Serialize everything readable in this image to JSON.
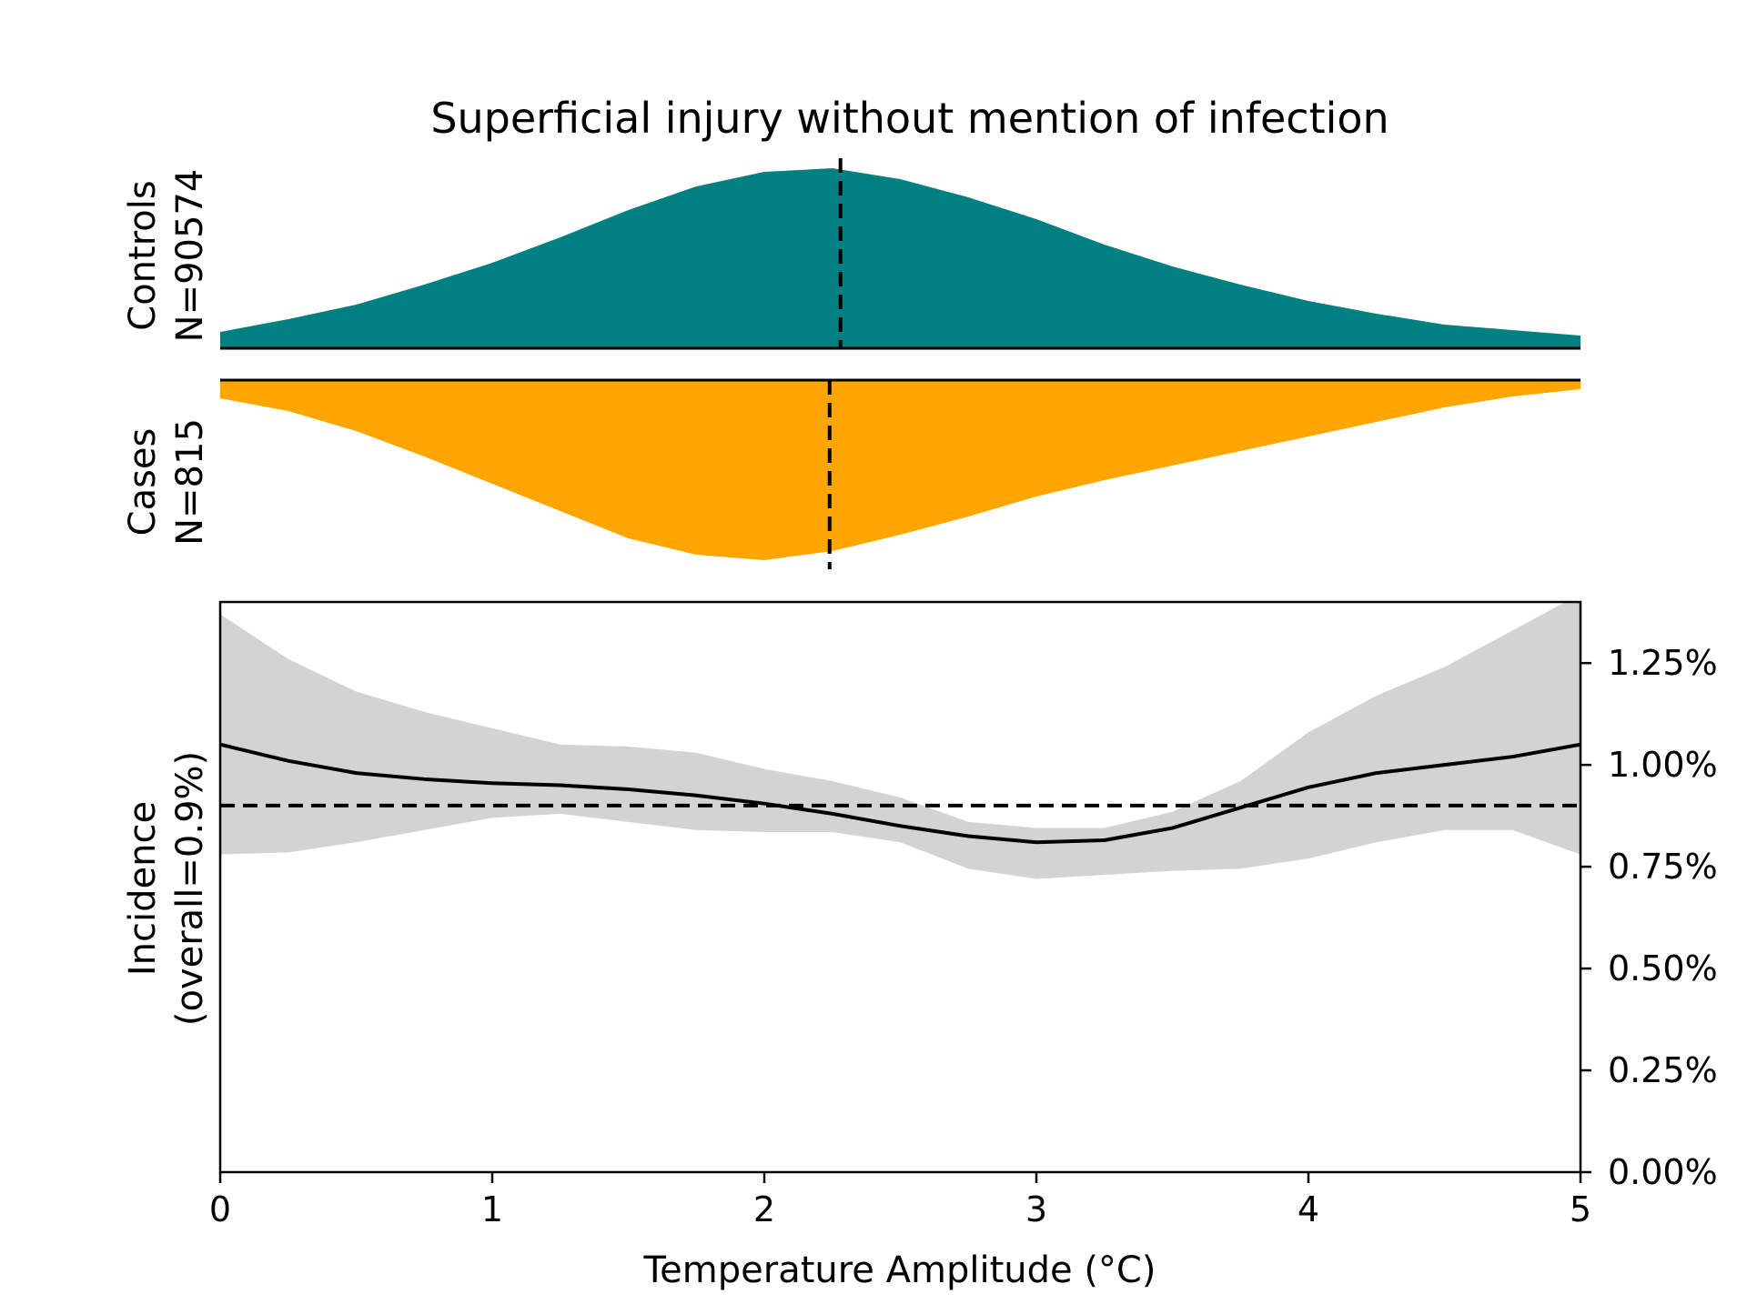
{
  "chart_data": [
    {
      "type": "area",
      "title": "Superficial injury without mention of infection",
      "panel_label_lines": [
        "Controls",
        "N=90574"
      ],
      "color": "#008080",
      "median_marker": 2.28,
      "x": [
        0,
        0.25,
        0.5,
        0.75,
        1.0,
        1.25,
        1.5,
        1.75,
        2.0,
        2.25,
        2.5,
        2.75,
        3.0,
        3.25,
        3.5,
        3.75,
        4.0,
        4.25,
        4.5,
        4.75,
        5.0
      ],
      "density": [
        0.09,
        0.16,
        0.24,
        0.35,
        0.47,
        0.61,
        0.76,
        0.89,
        0.97,
        0.99,
        0.93,
        0.83,
        0.71,
        0.57,
        0.45,
        0.35,
        0.26,
        0.19,
        0.13,
        0.1,
        0.07
      ]
    },
    {
      "type": "area",
      "panel_label_lines": [
        "Cases",
        "N=815"
      ],
      "color": "#FFA500",
      "median_marker": 2.24,
      "x": [
        0,
        0.25,
        0.5,
        0.75,
        1.0,
        1.25,
        1.5,
        1.75,
        2.0,
        2.25,
        2.5,
        2.75,
        3.0,
        3.25,
        3.5,
        3.75,
        4.0,
        4.25,
        4.5,
        4.75,
        5.0
      ],
      "density": [
        0.1,
        0.17,
        0.28,
        0.42,
        0.57,
        0.72,
        0.87,
        0.96,
        0.99,
        0.94,
        0.85,
        0.75,
        0.64,
        0.55,
        0.47,
        0.39,
        0.31,
        0.23,
        0.15,
        0.09,
        0.05
      ]
    },
    {
      "type": "line",
      "ylabel_lines": [
        "Incidence",
        "(overall=0.9%)"
      ],
      "xlabel": "Temperature Amplitude (°C)",
      "xlim": [
        0,
        5
      ],
      "ylim": [
        0,
        1.4
      ],
      "x_ticks": [
        0,
        1,
        2,
        3,
        4,
        5
      ],
      "x_tick_labels": [
        "0",
        "1",
        "2",
        "3",
        "4",
        "5"
      ],
      "y_ticks": [
        0,
        0.25,
        0.5,
        0.75,
        1.0,
        1.25
      ],
      "y_tick_labels": [
        "0.00%",
        "0.25%",
        "0.50%",
        "0.75%",
        "1.00%",
        "1.25%"
      ],
      "y_axis_side": "right",
      "overall_rate": 0.9,
      "band_color": "#d3d3d3",
      "x": [
        0,
        0.25,
        0.5,
        0.75,
        1.0,
        1.25,
        1.5,
        1.75,
        2.0,
        2.25,
        2.5,
        2.75,
        3.0,
        3.25,
        3.5,
        3.75,
        4.0,
        4.25,
        4.5,
        4.75,
        5.0
      ],
      "series": [
        {
          "name": "incidence",
          "values": [
            1.05,
            1.01,
            0.98,
            0.965,
            0.955,
            0.95,
            0.94,
            0.925,
            0.905,
            0.88,
            0.85,
            0.825,
            0.81,
            0.815,
            0.845,
            0.895,
            0.945,
            0.98,
            1.0,
            1.02,
            1.05
          ],
          "lower": [
            0.78,
            0.785,
            0.81,
            0.84,
            0.87,
            0.88,
            0.86,
            0.84,
            0.835,
            0.835,
            0.81,
            0.745,
            0.72,
            0.73,
            0.74,
            0.745,
            0.77,
            0.81,
            0.84,
            0.84,
            0.78
          ],
          "upper": [
            1.37,
            1.26,
            1.18,
            1.13,
            1.09,
            1.05,
            1.045,
            1.03,
            0.99,
            0.96,
            0.92,
            0.86,
            0.845,
            0.845,
            0.885,
            0.96,
            1.08,
            1.17,
            1.24,
            1.33,
            1.42
          ]
        }
      ]
    }
  ]
}
